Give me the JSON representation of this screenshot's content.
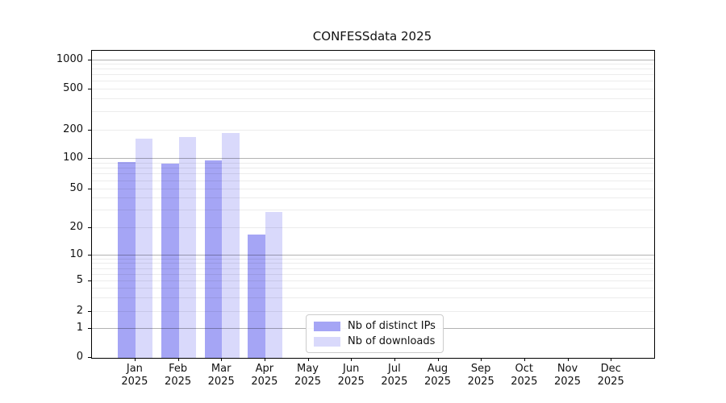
{
  "figure": {
    "title": "CONFESSdata 2025"
  },
  "chart_data": {
    "type": "bar",
    "title": "CONFESSdata 2025",
    "categories": [
      "Jan",
      "Feb",
      "Mar",
      "Apr",
      "May",
      "Jun",
      "Jul",
      "Aug",
      "Sep",
      "Oct",
      "Nov",
      "Dec"
    ],
    "year_label": "2025",
    "series": [
      {
        "name": "Nb of distinct IPs",
        "color": "#a5a5f5",
        "values": [
          93,
          90,
          97,
          17,
          0,
          0,
          0,
          0,
          0,
          0,
          0,
          0
        ]
      },
      {
        "name": "Nb of downloads",
        "color": "#d9d9fb",
        "values": [
          165,
          170,
          190,
          29,
          0,
          0,
          0,
          0,
          0,
          0,
          0,
          0
        ]
      }
    ],
    "yscale": "symlog",
    "ylim": [
      0,
      1000
    ],
    "yticks": [
      0,
      1,
      2,
      5,
      10,
      20,
      50,
      100,
      200,
      500,
      1000
    ],
    "grid": "both",
    "grid_major_ticks": [
      1,
      10,
      100,
      1000
    ],
    "legend": {
      "entries": [
        "Nb of distinct IPs",
        "Nb of downloads"
      ],
      "position": "lower center"
    }
  }
}
